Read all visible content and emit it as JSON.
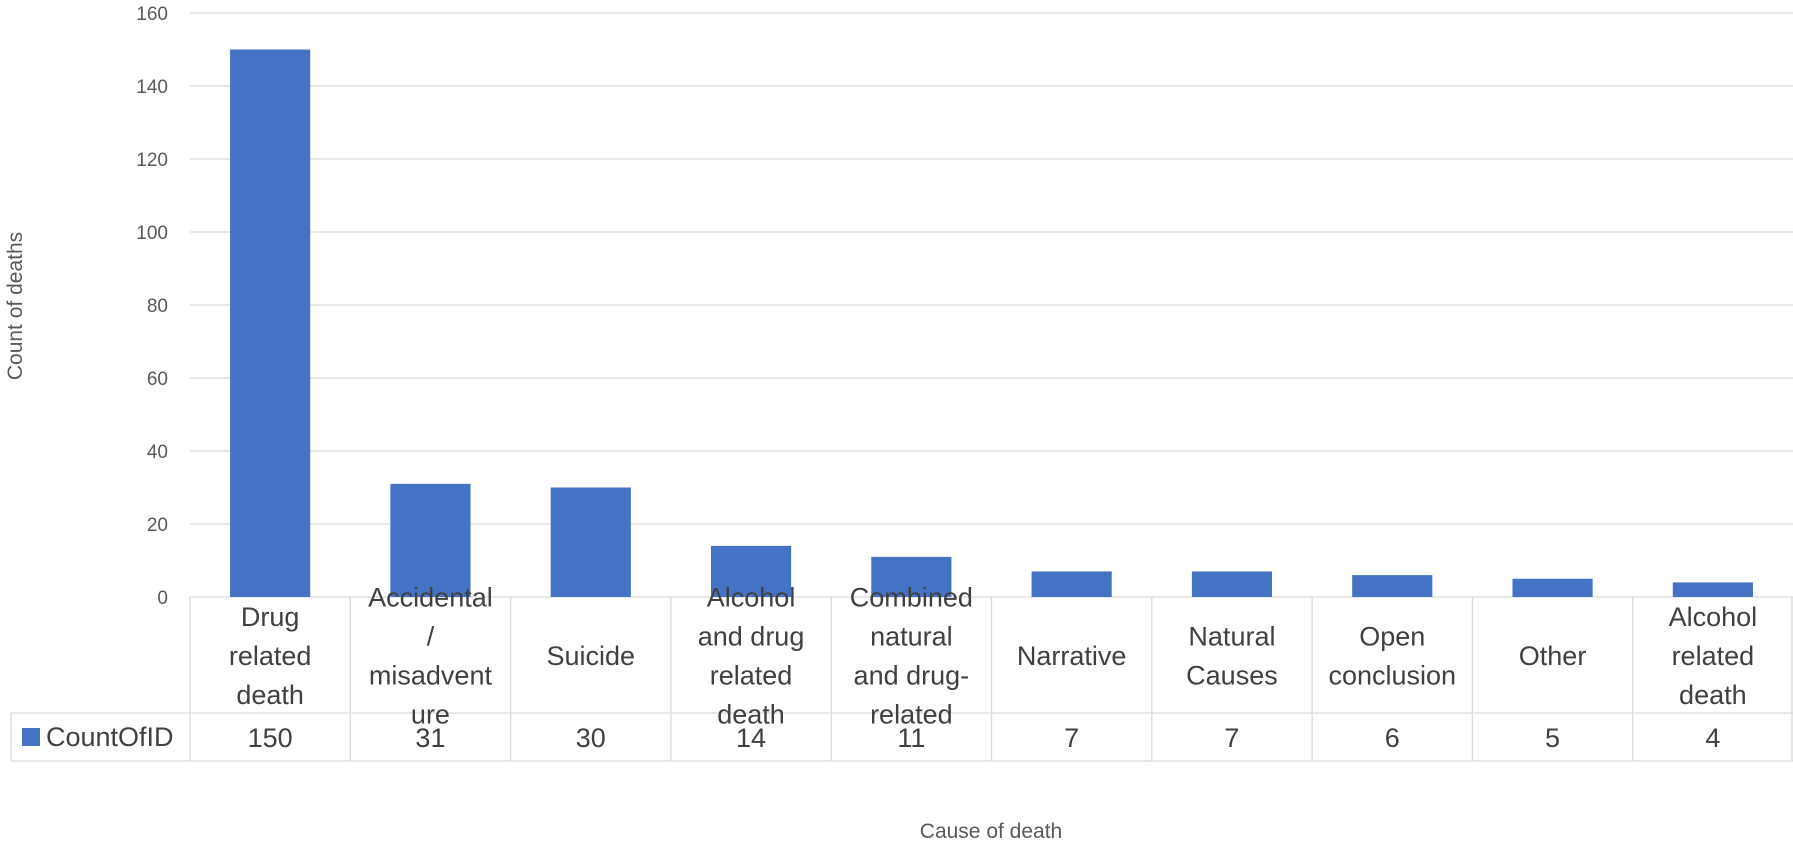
{
  "chart_data": {
    "type": "bar",
    "categories": [
      "Drug related death",
      "Accidental / misadventure",
      "Suicide",
      "Alcohol and drug related death",
      "Combined natural and drug-related",
      "Narrative",
      "Natural Causes",
      "Open conclusion",
      "Other",
      "Alcohol related death"
    ],
    "category_lines": [
      [
        "Drug",
        "related",
        "death"
      ],
      [
        "Accidental",
        "/",
        "misadvent",
        "ure"
      ],
      [
        "Suicide"
      ],
      [
        "Alcohol",
        "and drug",
        "related",
        "death"
      ],
      [
        "Combined",
        "natural",
        "and drug-",
        "related"
      ],
      [
        "Narrative"
      ],
      [
        "Natural",
        "Causes"
      ],
      [
        "Open",
        "conclusion"
      ],
      [
        "Other"
      ],
      [
        "Alcohol",
        "related",
        "death"
      ]
    ],
    "series": [
      {
        "name": "CountOfID",
        "values": [
          150,
          31,
          30,
          14,
          11,
          7,
          7,
          6,
          5,
          4
        ],
        "color": "#4472C4"
      }
    ],
    "xlabel": "Cause of death",
    "ylabel": "Count of deaths",
    "ylim": [
      0,
      160
    ],
    "yticks": [
      0,
      20,
      40,
      60,
      80,
      100,
      120,
      140,
      160
    ],
    "grid": true,
    "data_table": true
  }
}
